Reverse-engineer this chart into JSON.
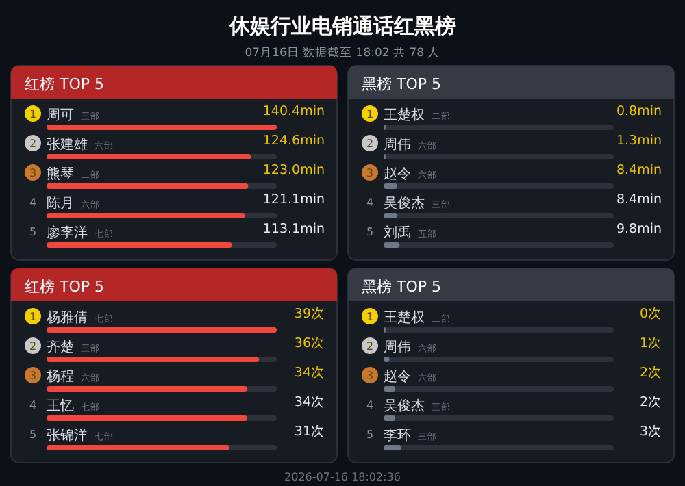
{
  "chart_data": [
    {
      "type": "other",
      "title": "休娱行业电销通话红黑榜",
      "subtitle": "07月16日 数据截至 18:02 共 78 人",
      "annotations": [
        "2026-07-16 18:02:36"
      ]
    },
    {
      "type": "bar",
      "orientation": "horizontal",
      "title": "红榜 TOP 5",
      "categories": [
        "周可 三部",
        "张建雄 六部",
        "熊琴 二部",
        "陈月 六部",
        "廖李洋 七部"
      ],
      "annotations": [
        "1",
        "2",
        "3",
        "4",
        "5"
      ],
      "xlim": [
        0,
        140.4
      ],
      "tick_labels": false,
      "series": [
        {
          "color": "#f0473f",
          "values": [
            140.4,
            124.6,
            123.0,
            121.1,
            113.1
          ],
          "value_labels": [
            "140.4min",
            "124.6min",
            "123.0min",
            "121.1min",
            "113.1min"
          ]
        }
      ]
    },
    {
      "type": "bar",
      "orientation": "horizontal",
      "title": "黑榜 TOP 5",
      "categories": [
        "王楚权 二部",
        "周伟 六部",
        "赵令 六部",
        "吴俊杰 三部",
        "刘禹 五部"
      ],
      "annotations": [
        "1",
        "2",
        "3",
        "4",
        "5"
      ],
      "xlim": [
        0,
        140.4
      ],
      "tick_labels": false,
      "series": [
        {
          "color": "#6e7888",
          "values": [
            0.8,
            1.3,
            8.4,
            8.4,
            9.8
          ],
          "value_labels": [
            "0.8min",
            "1.3min",
            "8.4min",
            "8.4min",
            "9.8min"
          ]
        }
      ]
    },
    {
      "type": "bar",
      "orientation": "horizontal",
      "title": "红榜 TOP 5",
      "categories": [
        "杨雅倩 七部",
        "齐楚 三部",
        "杨程 六部",
        "王忆 七部",
        "张锦洋 七部"
      ],
      "annotations": [
        "1",
        "2",
        "3",
        "4",
        "5"
      ],
      "xlim": [
        0,
        39
      ],
      "tick_labels": false,
      "series": [
        {
          "color": "#f0473f",
          "values": [
            39,
            36,
            34,
            34,
            31
          ],
          "value_labels": [
            "39次",
            "36次",
            "34次",
            "34次",
            "31次"
          ]
        }
      ]
    },
    {
      "type": "bar",
      "orientation": "horizontal",
      "title": "黑榜 TOP 5",
      "categories": [
        "王楚权 二部",
        "周伟 六部",
        "赵令 六部",
        "吴俊杰 三部",
        "李环 三部"
      ],
      "annotations": [
        "1",
        "2",
        "3",
        "4",
        "5"
      ],
      "xlim": [
        0,
        39
      ],
      "tick_labels": false,
      "series": [
        {
          "color": "#6e7888",
          "values": [
            0,
            1,
            2,
            2,
            3
          ],
          "value_labels": [
            "0次",
            "1次",
            "2次",
            "2次",
            "3次"
          ]
        }
      ]
    }
  ]
}
